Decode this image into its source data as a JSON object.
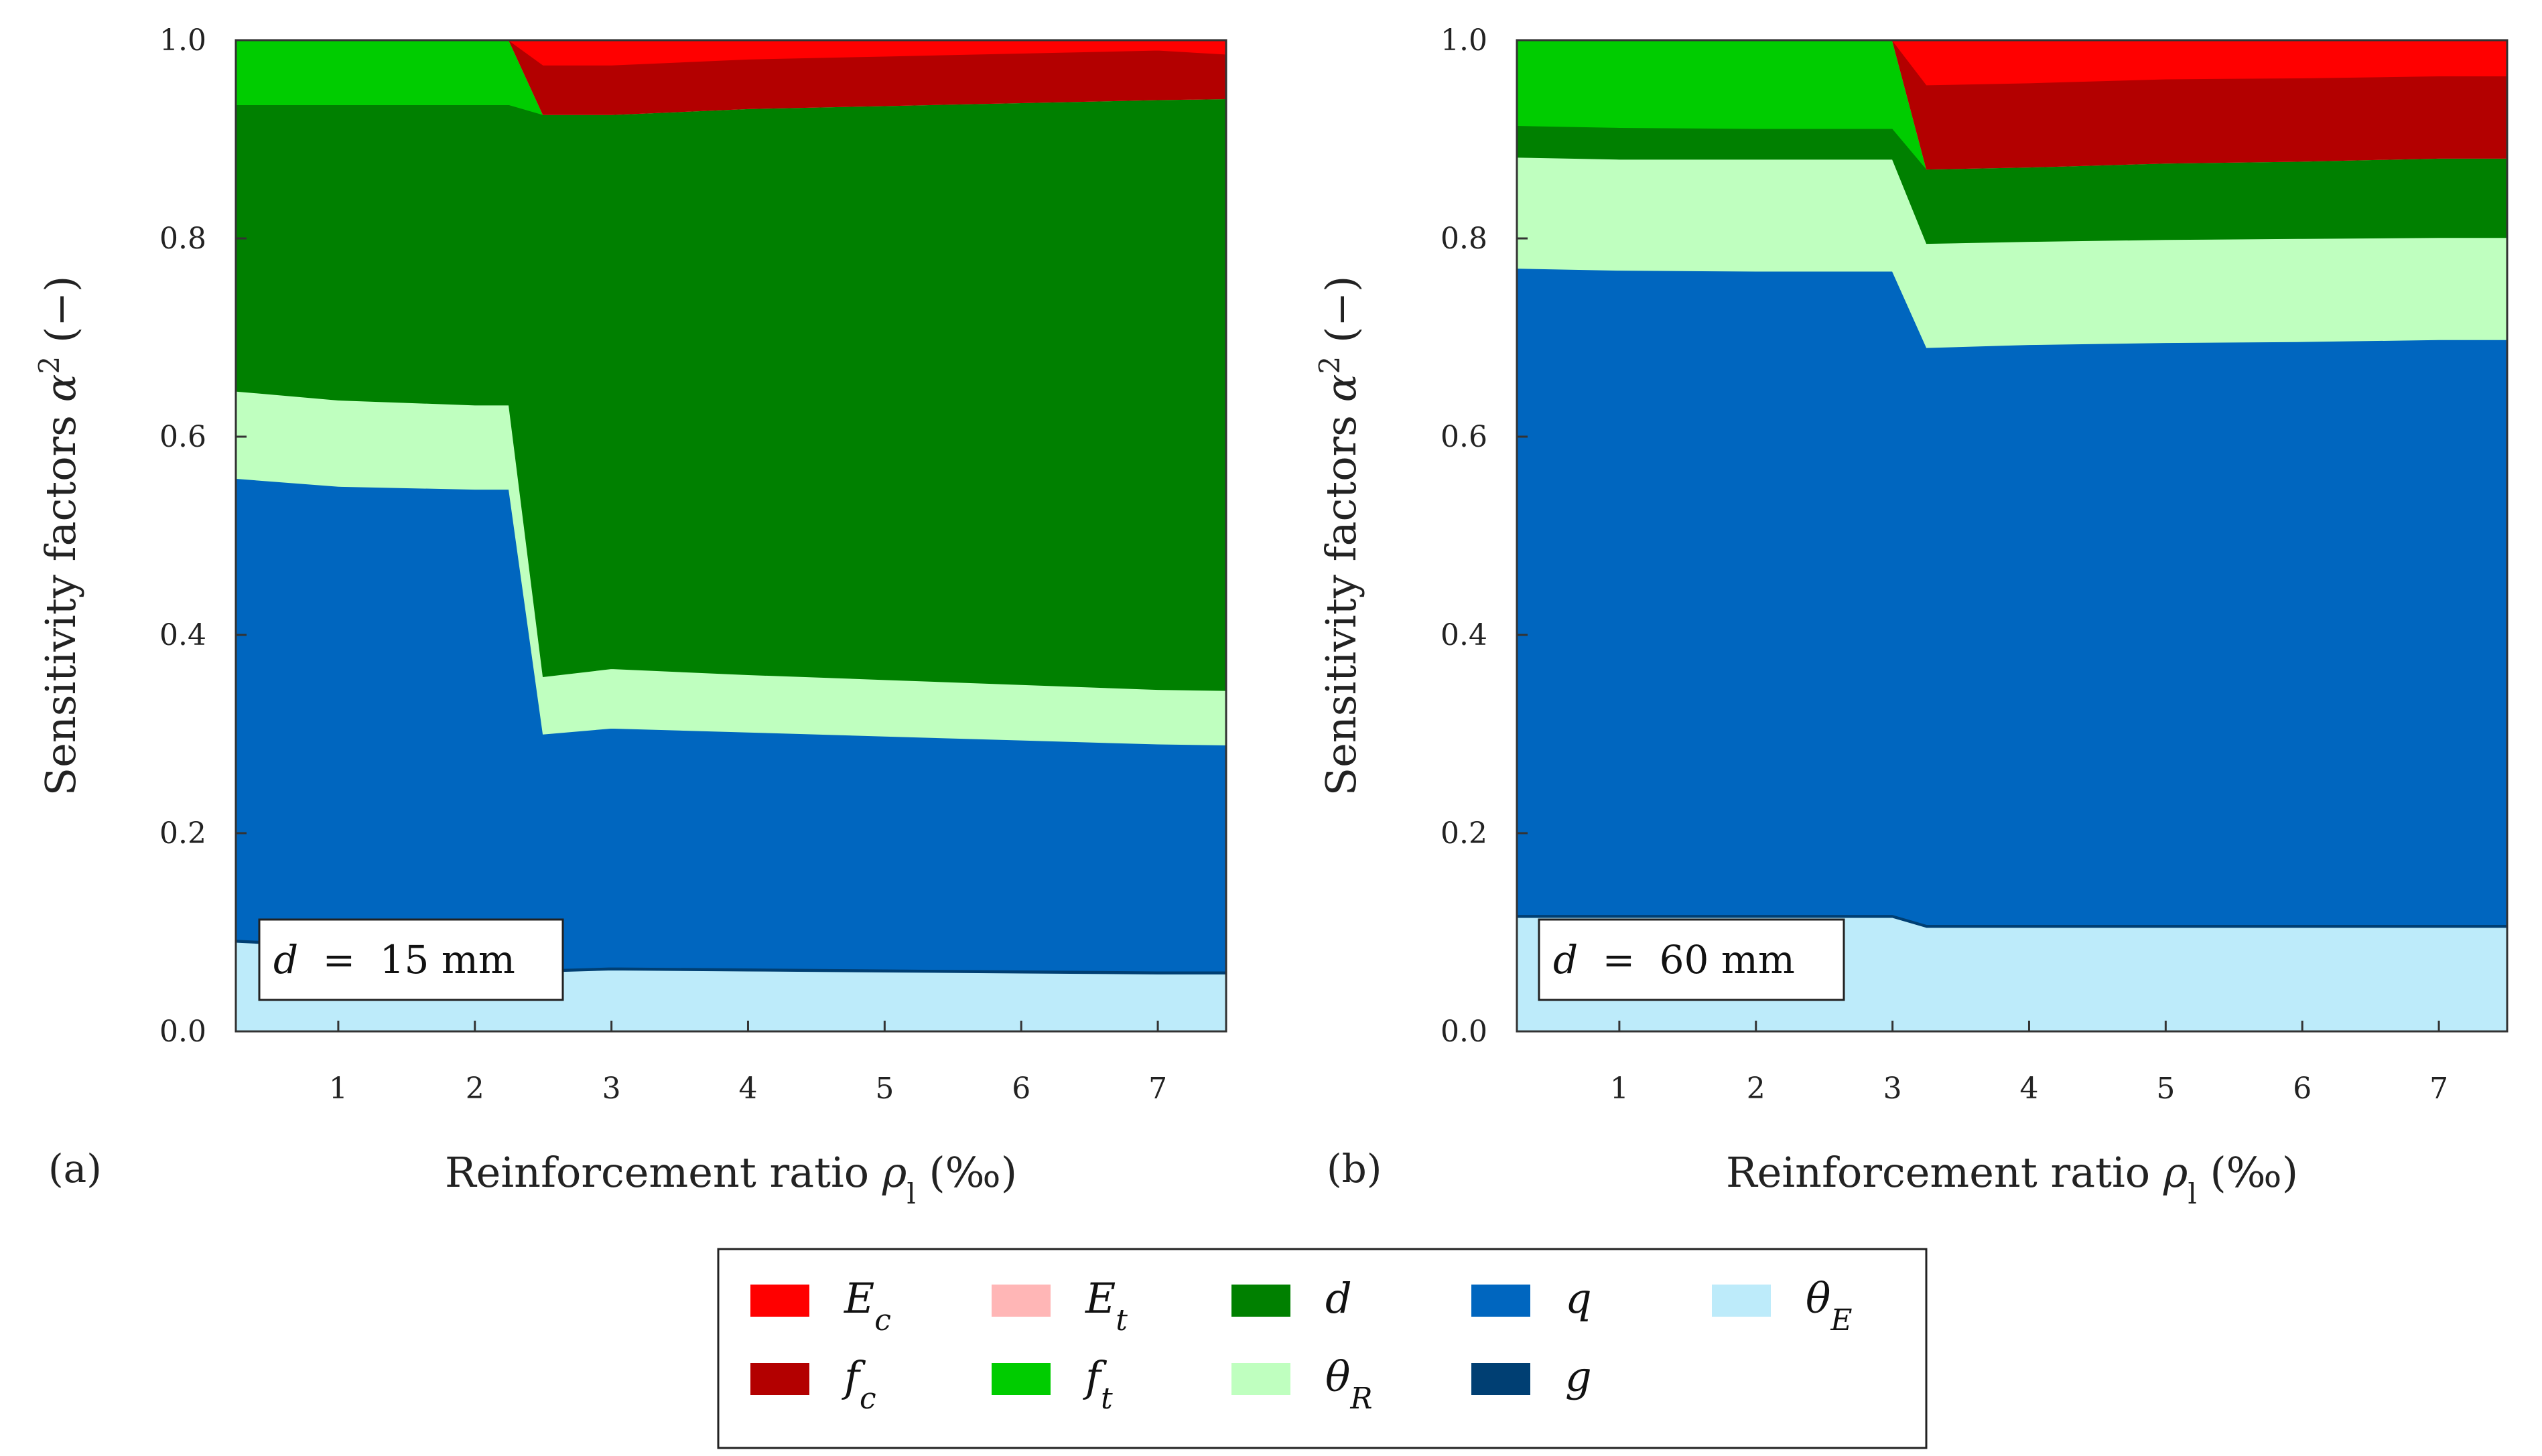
{
  "legend": {
    "items": [
      {
        "key": "Ec",
        "label": "E",
        "sub": "c",
        "color": "#FF0000"
      },
      {
        "key": "Et",
        "label": "E",
        "sub": "t",
        "color": "#FFB6B6"
      },
      {
        "key": "d",
        "label": "d",
        "sub": "",
        "color": "#008000"
      },
      {
        "key": "q",
        "label": "q",
        "sub": "",
        "color": "#0066BF"
      },
      {
        "key": "thetaE",
        "label": "θ",
        "sub": "E",
        "color": "#BDEBFA"
      },
      {
        "key": "fc",
        "label": "f",
        "sub": "c",
        "color": "#B30000"
      },
      {
        "key": "ft",
        "label": "f",
        "sub": "t",
        "color": "#00CC00"
      },
      {
        "key": "thetaR",
        "label": "θ",
        "sub": "R",
        "color": "#BFFFBF"
      },
      {
        "key": "g",
        "label": "g",
        "sub": "",
        "color": "#003F73"
      }
    ]
  },
  "chart_data": [
    {
      "type": "area",
      "stacked": true,
      "panel_label": "(a)",
      "annotation": {
        "lhs": "d",
        "eq": "=",
        "value": "15 mm"
      },
      "ylabel_main": "Sensitivity factors ",
      "ylabel_symbol": "α",
      "ylabel_exp": "2",
      "ylabel_unit": " (−)",
      "xlabel_main": "Reinforcement ratio ",
      "xlabel_symbol": "ρ",
      "xlabel_sub": "l",
      "xlabel_unit": " (‰)",
      "xlim": [
        0.25,
        7.5
      ],
      "ylim": [
        0.0,
        1.0
      ],
      "xticks": [
        "1",
        "2",
        "3",
        "4",
        "5",
        "6",
        "7"
      ],
      "yticks": [
        "0.0",
        "0.2",
        "0.4",
        "0.6",
        "0.8",
        "1.0"
      ],
      "x": [
        0.25,
        1,
        2,
        2.25,
        2.5,
        3,
        4,
        5,
        6,
        7,
        7.5
      ],
      "series": [
        {
          "name": "thetaE",
          "values": [
            0.09,
            0.085,
            0.08,
            0.08,
            0.06,
            0.062,
            0.061,
            0.06,
            0.059,
            0.058,
            0.058
          ]
        },
        {
          "name": "g",
          "values": [
            0.003,
            0.003,
            0.003,
            0.003,
            0.003,
            0.003,
            0.003,
            0.003,
            0.003,
            0.003,
            0.003
          ]
        },
        {
          "name": "q",
          "values": [
            0.465,
            0.462,
            0.464,
            0.464,
            0.237,
            0.241,
            0.238,
            0.235,
            0.232,
            0.229,
            0.228
          ]
        },
        {
          "name": "thetaR",
          "values": [
            0.088,
            0.087,
            0.085,
            0.085,
            0.058,
            0.06,
            0.058,
            0.057,
            0.056,
            0.055,
            0.055
          ]
        },
        {
          "name": "d",
          "values": [
            0.289,
            0.298,
            0.303,
            0.303,
            0.567,
            0.559,
            0.571,
            0.579,
            0.587,
            0.595,
            0.597
          ]
        },
        {
          "name": "ft",
          "values": [
            0.065,
            0.065,
            0.065,
            0.065,
            0.0,
            0.0,
            0.0,
            0.0,
            0.0,
            0.0,
            0.0
          ]
        },
        {
          "name": "Et",
          "values": [
            0.0,
            0.0,
            0.0,
            0.0,
            0.0,
            0.0,
            0.0,
            0.0,
            0.0,
            0.0,
            0.0
          ]
        },
        {
          "name": "fc",
          "values": [
            0.0,
            0.0,
            0.0,
            0.0,
            0.05,
            0.05,
            0.05,
            0.05,
            0.05,
            0.05,
            0.045
          ]
        },
        {
          "name": "Ec",
          "values": [
            0.0,
            0.0,
            0.0,
            0.0,
            0.025,
            0.025,
            0.019,
            0.016,
            0.013,
            0.01,
            0.014
          ]
        }
      ]
    },
    {
      "type": "area",
      "stacked": true,
      "panel_label": "(b)",
      "annotation": {
        "lhs": "d",
        "eq": "=",
        "value": "60 mm"
      },
      "ylabel_main": "Sensitivity factors ",
      "ylabel_symbol": "α",
      "ylabel_exp": "2",
      "ylabel_unit": " (−)",
      "xlabel_main": "Reinforcement ratio ",
      "xlabel_symbol": "ρ",
      "xlabel_sub": "l",
      "xlabel_unit": " (‰)",
      "xlim": [
        0.25,
        7.5
      ],
      "ylim": [
        0.0,
        1.0
      ],
      "xticks": [
        "1",
        "2",
        "3",
        "4",
        "5",
        "6",
        "7"
      ],
      "yticks": [
        "0.0",
        "0.2",
        "0.4",
        "0.6",
        "0.8",
        "1.0"
      ],
      "x": [
        0.25,
        1,
        2,
        3,
        3.25,
        4,
        5,
        6,
        7,
        7.5
      ],
      "series": [
        {
          "name": "thetaE",
          "values": [
            0.115,
            0.115,
            0.115,
            0.115,
            0.105,
            0.105,
            0.105,
            0.105,
            0.105,
            0.105
          ]
        },
        {
          "name": "g",
          "values": [
            0.003,
            0.003,
            0.003,
            0.003,
            0.003,
            0.003,
            0.003,
            0.003,
            0.003,
            0.003
          ]
        },
        {
          "name": "q",
          "values": [
            0.652,
            0.65,
            0.649,
            0.649,
            0.582,
            0.585,
            0.587,
            0.588,
            0.59,
            0.59
          ]
        },
        {
          "name": "thetaR",
          "values": [
            0.112,
            0.112,
            0.113,
            0.113,
            0.105,
            0.104,
            0.104,
            0.104,
            0.103,
            0.103
          ]
        },
        {
          "name": "d",
          "values": [
            0.032,
            0.032,
            0.031,
            0.031,
            0.075,
            0.075,
            0.077,
            0.078,
            0.08,
            0.08
          ]
        },
        {
          "name": "ft",
          "values": [
            0.086,
            0.088,
            0.089,
            0.089,
            0.0,
            0.0,
            0.0,
            0.0,
            0.0,
            0.0
          ]
        },
        {
          "name": "Et",
          "values": [
            0.0,
            0.0,
            0.0,
            0.0,
            0.0,
            0.0,
            0.0,
            0.0,
            0.0,
            0.0
          ]
        },
        {
          "name": "fc",
          "values": [
            0.0,
            0.0,
            0.0,
            0.0,
            0.085,
            0.085,
            0.085,
            0.084,
            0.083,
            0.083
          ]
        },
        {
          "name": "Ec",
          "values": [
            0.0,
            0.0,
            0.0,
            0.0,
            0.045,
            0.043,
            0.039,
            0.038,
            0.036,
            0.036
          ]
        }
      ]
    }
  ]
}
